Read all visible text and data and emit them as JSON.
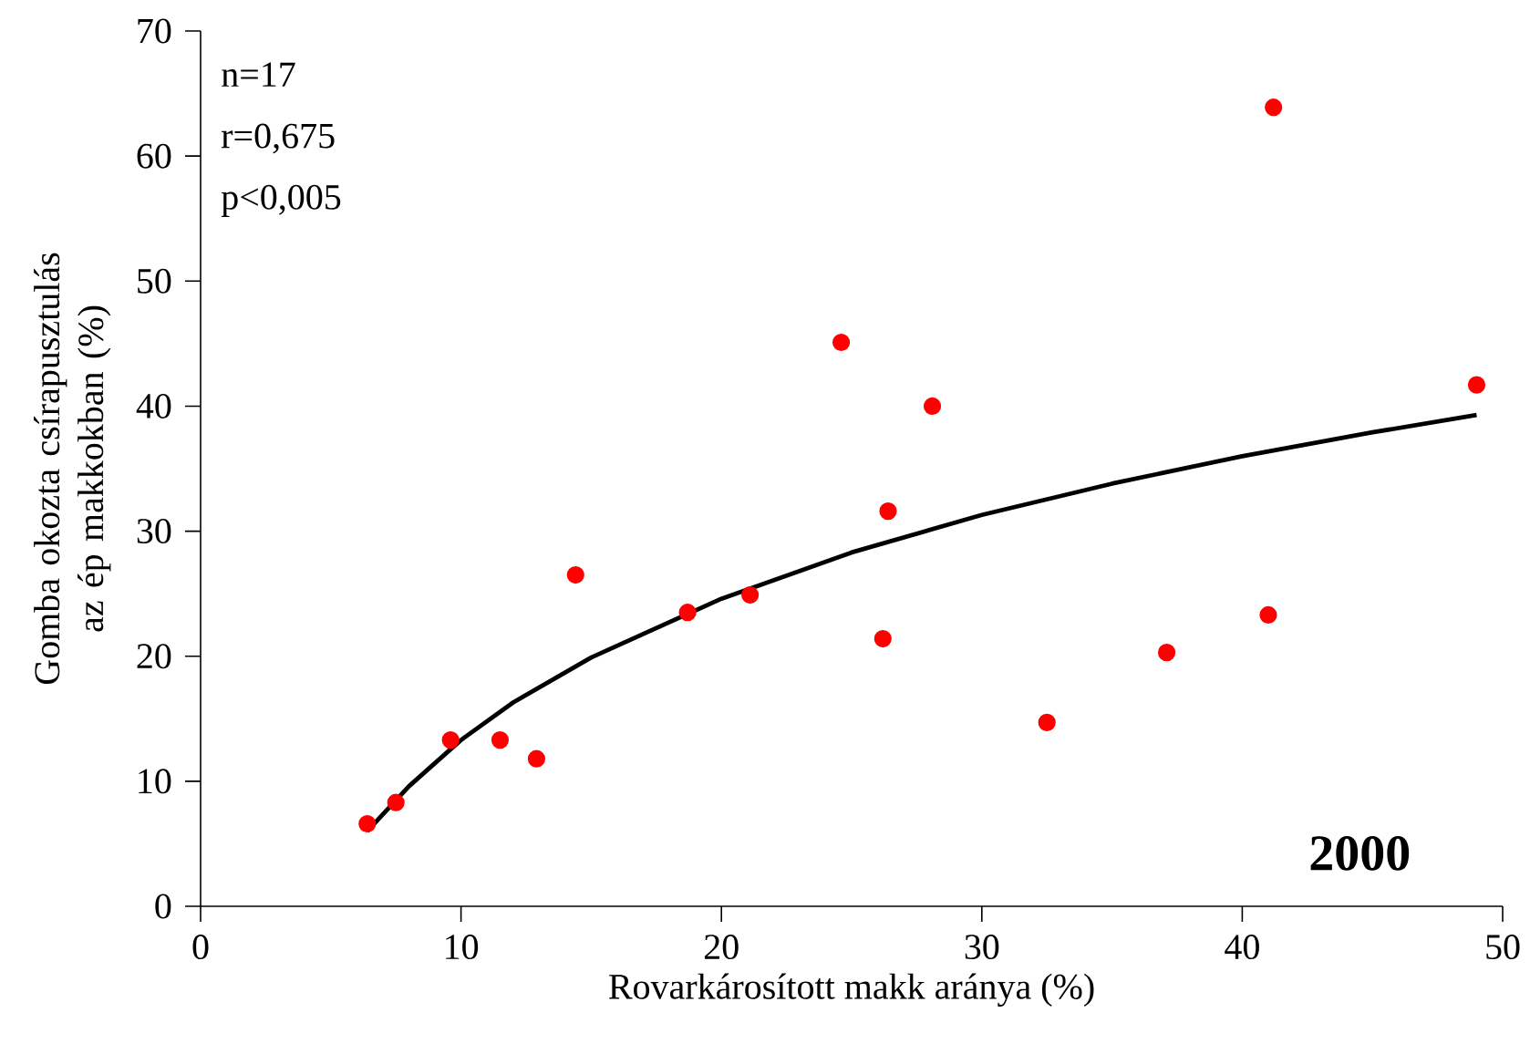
{
  "chart_data": {
    "type": "scatter",
    "xlabel": "Rovarkárosított makk aránya (%)",
    "ylabel": "Gomba okozta csírapusztulás az ép makkokban (%)",
    "xlim": [
      0,
      50
    ],
    "ylim": [
      0,
      70
    ],
    "xticks": [
      0,
      10,
      20,
      30,
      40,
      50
    ],
    "yticks": [
      0,
      10,
      20,
      30,
      40,
      50,
      60,
      70
    ],
    "grid": false,
    "annotations": [
      "n=17",
      "r=0,675",
      "p<0,005",
      "**2000**"
    ],
    "series": [
      {
        "color": "#ff0000",
        "marker": "circle",
        "x": [
          6.4,
          7.5,
          9.6,
          11.5,
          12.9,
          14.4,
          18.7,
          21.1,
          24.6,
          26.2,
          26.4,
          28.1,
          32.5,
          37.1,
          41.0,
          41.2,
          49.0
        ],
        "values": [
          6.6,
          8.3,
          13.3,
          13.3,
          11.8,
          26.5,
          23.5,
          24.9,
          45.1,
          21.4,
          31.6,
          40.0,
          14.7,
          20.3,
          23.3,
          63.9,
          41.7
        ]
      },
      {
        "type": "line",
        "color": "#000000",
        "marker": "none",
        "x": [
          6.4,
          8,
          10,
          12,
          15,
          20,
          25,
          30,
          35,
          40,
          45,
          49
        ],
        "values": [
          6.0,
          9.6,
          13.3,
          16.3,
          19.9,
          24.6,
          28.3,
          31.3,
          33.8,
          36.0,
          37.9,
          39.3
        ]
      }
    ]
  }
}
